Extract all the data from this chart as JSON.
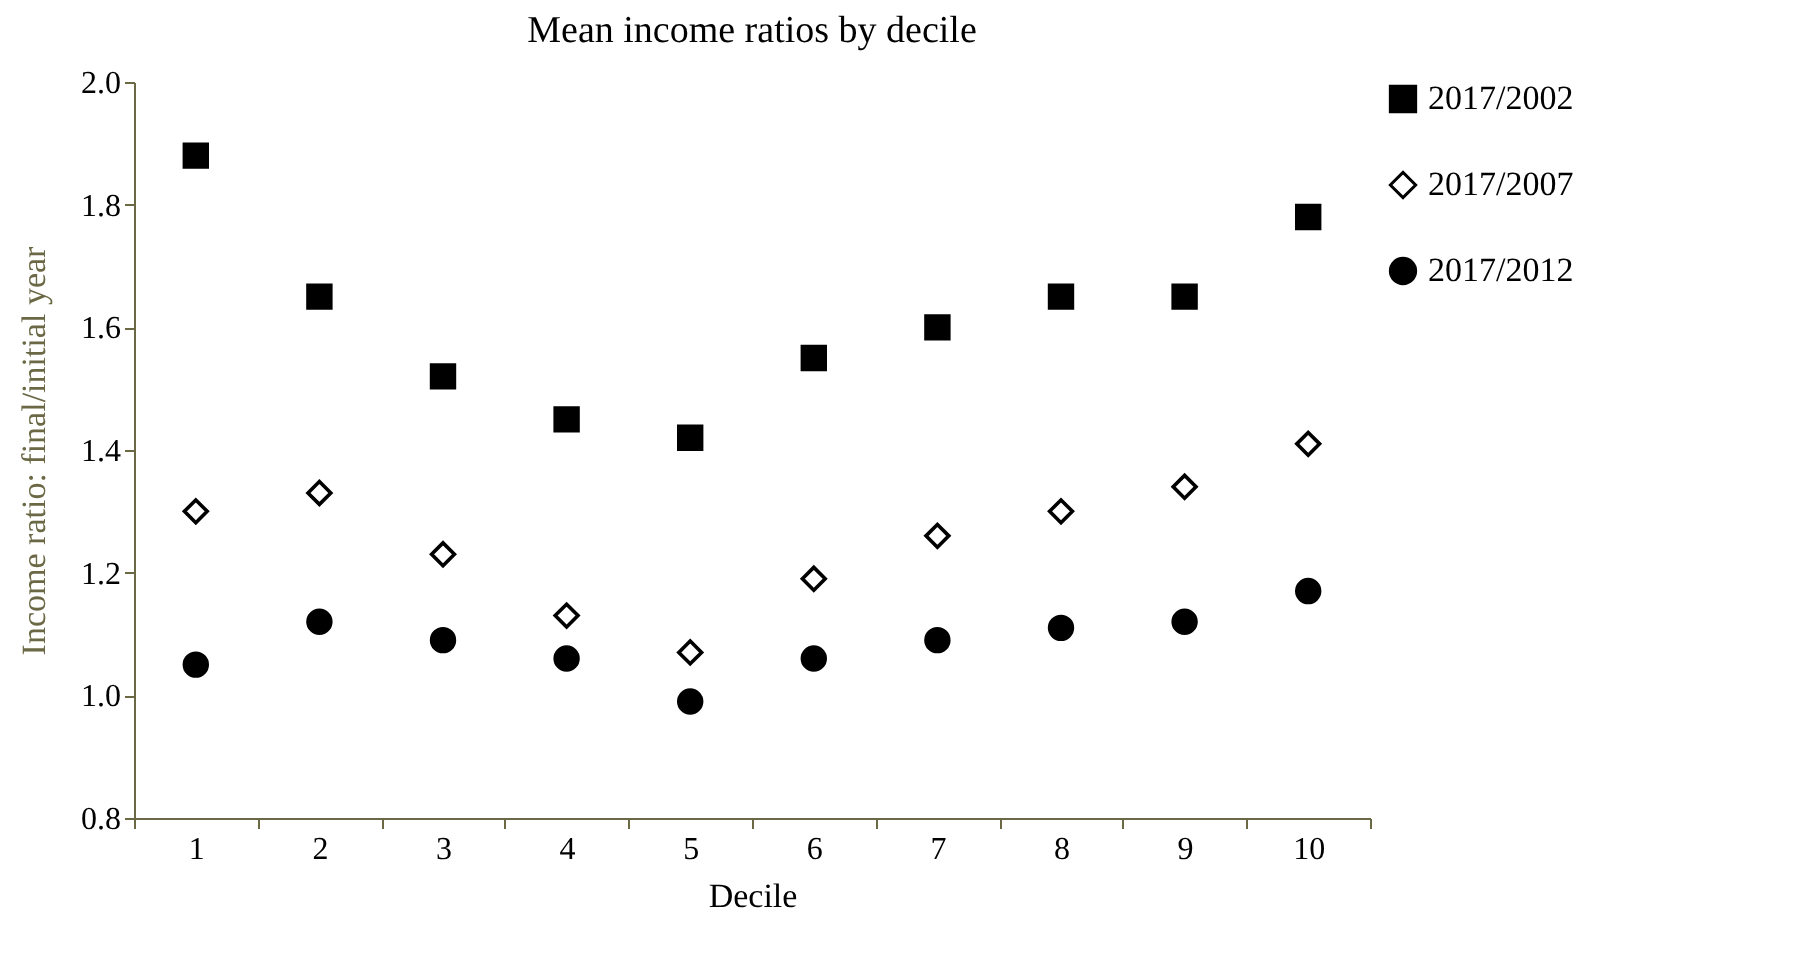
{
  "chart_data": {
    "type": "scatter",
    "title": "Mean income ratios by decile",
    "xlabel": "Decile",
    "ylabel": "Income ratio: final/initial year",
    "categories": [
      "1",
      "2",
      "3",
      "4",
      "5",
      "6",
      "7",
      "8",
      "9",
      "10"
    ],
    "series": [
      {
        "name": "2017/2002",
        "color": "#000000",
        "marker": "square",
        "values": [
          1.88,
          1.65,
          1.52,
          1.45,
          1.42,
          1.55,
          1.6,
          1.65,
          1.65,
          1.78
        ]
      },
      {
        "name": "2017/2007",
        "color": "#000000",
        "marker": "diamond",
        "values": [
          1.3,
          1.33,
          1.23,
          1.13,
          1.07,
          1.19,
          1.26,
          1.3,
          1.34,
          1.41
        ]
      },
      {
        "name": "2017/2012",
        "color": "#000000",
        "marker": "circle",
        "values": [
          1.05,
          1.12,
          1.09,
          1.06,
          0.99,
          1.06,
          1.09,
          1.11,
          1.12,
          1.17
        ]
      }
    ],
    "ylim": [
      0.8,
      2.0
    ],
    "yticks": [
      {
        "value": 0.8,
        "label": "0.8"
      },
      {
        "value": 1.0,
        "label": "1.0"
      },
      {
        "value": 1.2,
        "label": "1.2"
      },
      {
        "value": 1.4,
        "label": "1.4"
      },
      {
        "value": 1.6,
        "label": "1.6"
      },
      {
        "value": 1.8,
        "label": "1.8"
      },
      {
        "value": 2.0,
        "label": "2.0"
      }
    ],
    "legend": "right",
    "grid": false
  }
}
